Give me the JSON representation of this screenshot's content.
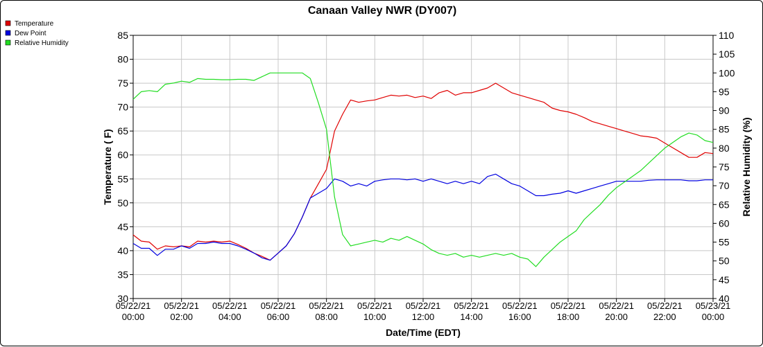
{
  "chart_data": {
    "type": "line",
    "title": "Canaan Valley NWR (DY007)",
    "xlabel": "Date/Time (EDT)",
    "ylabel": "Temperature ( F)",
    "y2label": "Relative Humidity (%)",
    "ylim": [
      30,
      85
    ],
    "y2lim": [
      40,
      110
    ],
    "yticks": [
      30,
      35,
      40,
      45,
      50,
      55,
      60,
      65,
      70,
      75,
      80,
      85
    ],
    "y2ticks": [
      40,
      45,
      50,
      55,
      60,
      65,
      70,
      75,
      80,
      85,
      90,
      95,
      100,
      105,
      110
    ],
    "xticks": [
      {
        "date": "05/22/21",
        "time": "00:00"
      },
      {
        "date": "05/22/21",
        "time": "02:00"
      },
      {
        "date": "05/22/21",
        "time": "04:00"
      },
      {
        "date": "05/22/21",
        "time": "06:00"
      },
      {
        "date": "05/22/21",
        "time": "08:00"
      },
      {
        "date": "05/22/21",
        "time": "10:00"
      },
      {
        "date": "05/22/21",
        "time": "12:00"
      },
      {
        "date": "05/22/21",
        "time": "14:00"
      },
      {
        "date": "05/22/21",
        "time": "16:00"
      },
      {
        "date": "05/22/21",
        "time": "18:00"
      },
      {
        "date": "05/22/21",
        "time": "20:00"
      },
      {
        "date": "05/22/21",
        "time": "22:00"
      },
      {
        "date": "05/23/21",
        "time": "00:00"
      }
    ],
    "grid": true,
    "legend_position": "top-left",
    "x": [
      "00:00",
      "00:20",
      "00:40",
      "01:00",
      "01:20",
      "01:40",
      "02:00",
      "02:20",
      "02:40",
      "03:00",
      "03:20",
      "03:40",
      "04:00",
      "04:20",
      "04:40",
      "05:00",
      "05:20",
      "05:40",
      "06:00",
      "06:20",
      "06:40",
      "07:00",
      "07:20",
      "07:40",
      "08:00",
      "08:20",
      "08:40",
      "09:00",
      "09:20",
      "09:40",
      "10:00",
      "10:20",
      "10:40",
      "11:00",
      "11:20",
      "11:40",
      "12:00",
      "12:20",
      "12:40",
      "13:00",
      "13:20",
      "13:40",
      "14:00",
      "14:20",
      "14:40",
      "15:00",
      "15:20",
      "15:40",
      "16:00",
      "16:20",
      "16:40",
      "17:00",
      "17:20",
      "17:40",
      "18:00",
      "18:20",
      "18:40",
      "19:00",
      "19:20",
      "19:40",
      "20:00",
      "20:20",
      "20:40",
      "21:00",
      "21:20",
      "21:40",
      "22:00",
      "22:20",
      "22:40",
      "23:00",
      "23:20",
      "23:40",
      "24:00"
    ],
    "series": [
      {
        "name": "Temperature",
        "color": "#e00000",
        "axis": "left",
        "values": [
          43.3,
          42.0,
          41.8,
          40.3,
          41.0,
          40.8,
          41.0,
          40.8,
          42.0,
          41.8,
          42.0,
          41.8,
          42.0,
          41.3,
          40.5,
          39.5,
          38.8,
          38.0,
          39.5,
          41.0,
          43.5,
          47.0,
          51.0,
          54.0,
          57.0,
          65.0,
          68.5,
          71.5,
          71.0,
          71.3,
          71.5,
          72.0,
          72.5,
          72.3,
          72.5,
          72.0,
          72.3,
          71.8,
          73.0,
          73.5,
          72.5,
          73.0,
          73.0,
          73.5,
          74.0,
          75.0,
          74.0,
          73.0,
          72.5,
          72.0,
          71.5,
          71.0,
          69.8,
          69.3,
          69.0,
          68.5,
          67.8,
          67.0,
          66.5,
          66.0,
          65.5,
          65.0,
          64.5,
          64.0,
          63.8,
          63.5,
          62.5,
          61.5,
          60.5,
          59.5,
          59.5,
          60.5,
          60.3
        ],
        "data_name": "temperature-line"
      },
      {
        "name": "Dew Point",
        "color": "#0000e0",
        "axis": "left",
        "values": [
          41.5,
          40.5,
          40.5,
          39.0,
          40.3,
          40.3,
          41.0,
          40.5,
          41.5,
          41.5,
          41.8,
          41.5,
          41.5,
          41.0,
          40.3,
          39.5,
          38.5,
          38.0,
          39.5,
          41.0,
          43.5,
          47.0,
          51.0,
          52.0,
          53.0,
          55.0,
          54.5,
          53.5,
          54.0,
          53.5,
          54.5,
          54.8,
          55.0,
          55.0,
          54.8,
          55.0,
          54.5,
          55.0,
          54.5,
          54.0,
          54.5,
          54.0,
          54.5,
          54.0,
          55.5,
          56.0,
          55.0,
          54.0,
          53.5,
          52.5,
          51.5,
          51.5,
          51.8,
          52.0,
          52.5,
          52.0,
          52.5,
          53.0,
          53.5,
          54.0,
          54.5,
          54.5,
          54.5,
          54.5,
          54.7,
          54.8,
          54.8,
          54.8,
          54.8,
          54.6,
          54.6,
          54.8,
          54.8
        ],
        "data_name": "dew-point-line"
      },
      {
        "name": "Relative Humidity",
        "color": "#22dd22",
        "axis": "right",
        "values": [
          93.0,
          95.0,
          95.3,
          95.0,
          97.0,
          97.3,
          97.8,
          97.5,
          98.5,
          98.3,
          98.3,
          98.2,
          98.2,
          98.3,
          98.3,
          98.0,
          99.0,
          100.0,
          100.0,
          100.0,
          100.0,
          100.0,
          98.5,
          92.0,
          85.0,
          67.0,
          57.0,
          54.0,
          54.5,
          55.0,
          55.5,
          55.0,
          56.0,
          55.5,
          56.5,
          55.5,
          54.5,
          53.0,
          52.0,
          51.5,
          52.0,
          51.0,
          51.5,
          51.0,
          51.5,
          52.0,
          51.5,
          52.0,
          51.0,
          50.5,
          48.5,
          51.0,
          53.0,
          55.0,
          56.5,
          58.0,
          61.0,
          63.0,
          65.0,
          67.5,
          69.5,
          71.0,
          72.5,
          74.0,
          76.0,
          78.0,
          80.0,
          81.5,
          83.0,
          84.0,
          83.5,
          82.0,
          81.5
        ],
        "data_name": "relative-humidity-line"
      }
    ]
  }
}
